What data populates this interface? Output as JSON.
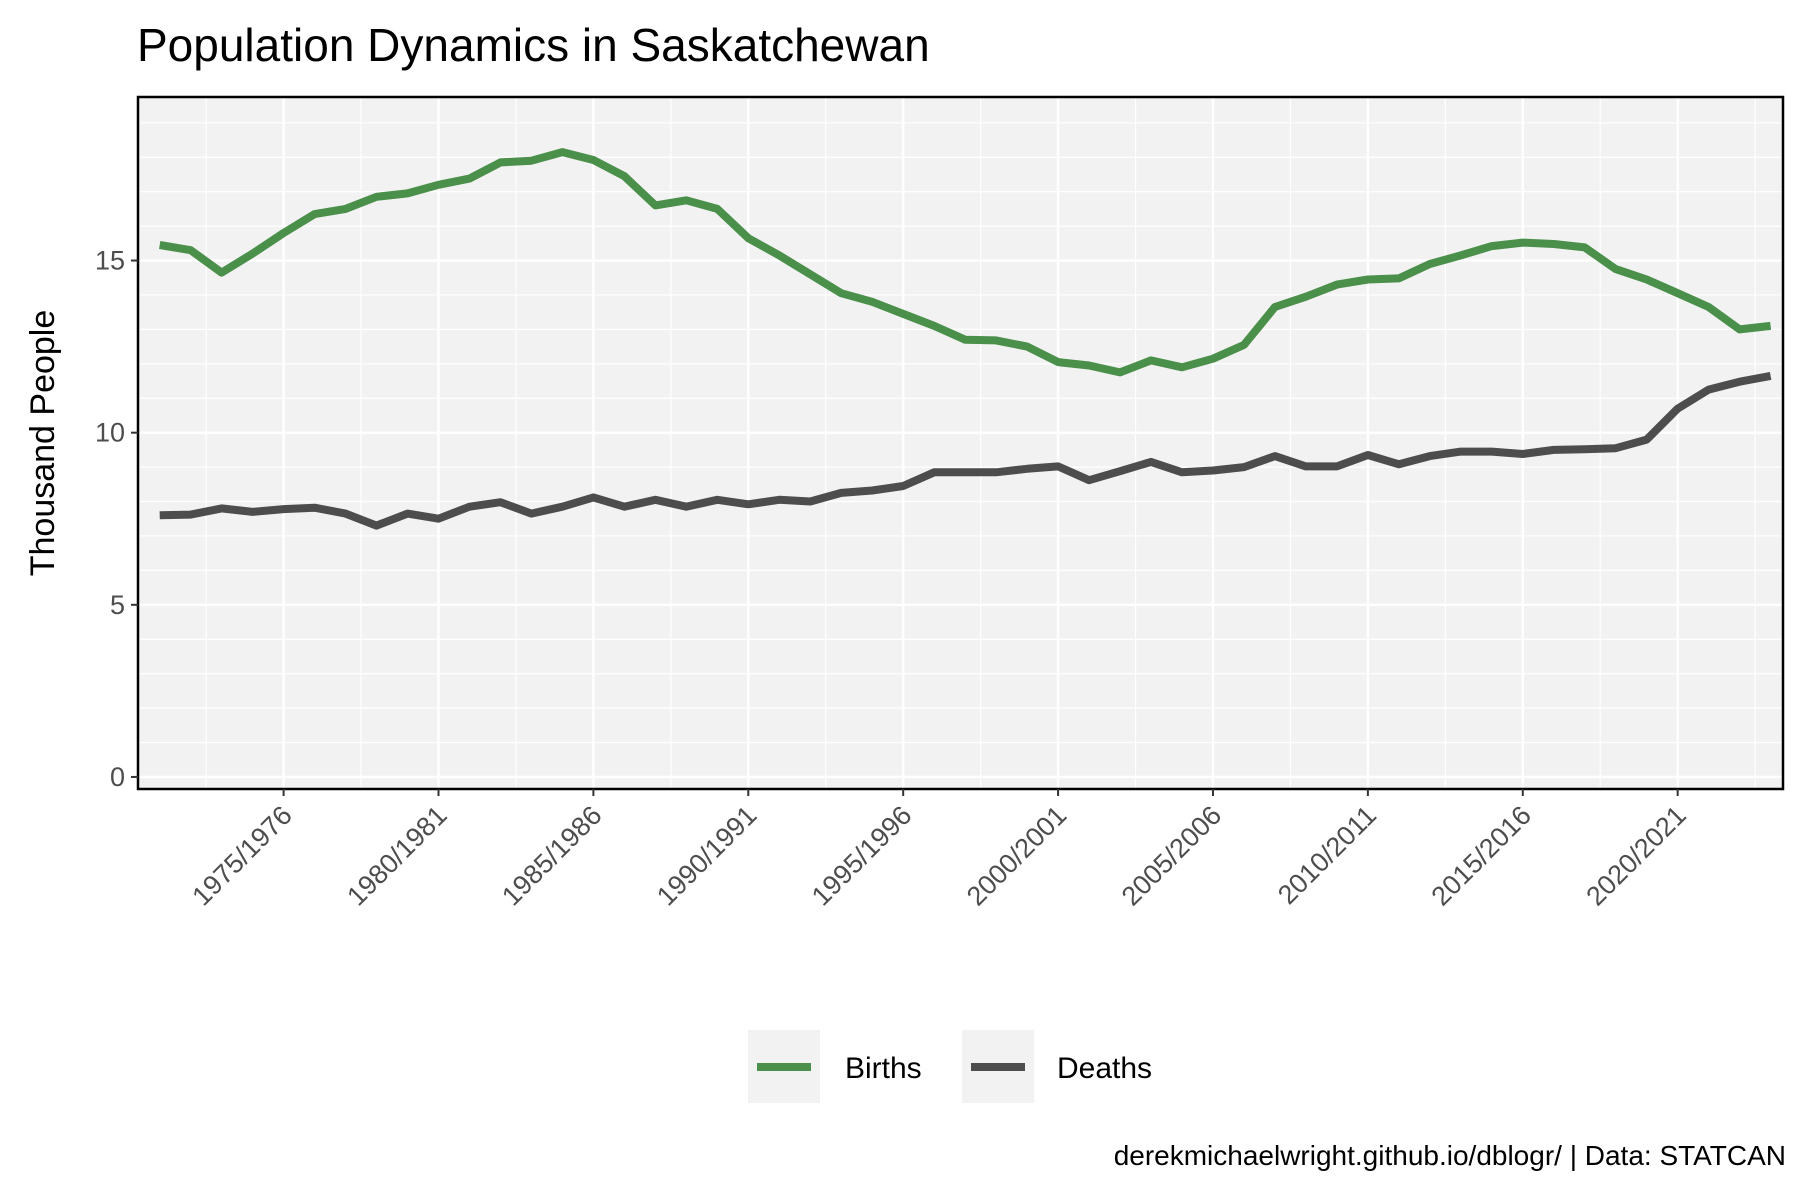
{
  "chart_data": {
    "type": "line",
    "title": "Population Dynamics in Saskatchewan",
    "caption": "derekmichaelwright.github.io/dblogr/ | Data: STATCAN",
    "xlabel": "",
    "ylabel": "Thousand People",
    "x_start": "1971/1972",
    "x_end": "2023/2024",
    "x_ticks": [
      "1975/1976",
      "1980/1981",
      "1985/1986",
      "1990/1991",
      "1995/1996",
      "2000/2001",
      "2005/2006",
      "2010/2011",
      "2015/2016",
      "2020/2021"
    ],
    "y_ticks": [
      0,
      5,
      10,
      15
    ],
    "ylim": [
      0,
      19.5
    ],
    "grid": true,
    "legend_position": "bottom",
    "series": [
      {
        "name": "Births",
        "color": "#4a8f4a",
        "values": [
          15.45,
          15.3,
          14.65,
          15.2,
          15.8,
          16.35,
          16.5,
          16.85,
          16.95,
          17.2,
          17.38,
          17.85,
          17.9,
          18.15,
          17.92,
          17.45,
          16.6,
          16.75,
          16.5,
          15.65,
          15.15,
          14.6,
          14.05,
          13.8,
          13.45,
          13.1,
          12.7,
          12.68,
          12.5,
          12.05,
          11.95,
          11.75,
          12.1,
          11.9,
          12.15,
          12.55,
          13.65,
          13.95,
          14.3,
          14.45,
          14.48,
          14.9,
          15.15,
          15.42,
          15.52,
          15.48,
          15.38,
          14.75,
          14.45,
          14.05,
          13.65,
          13.0,
          13.1
        ]
      },
      {
        "name": "Deaths",
        "color": "#4d4d4d",
        "values": [
          7.6,
          7.62,
          7.8,
          7.7,
          7.78,
          7.82,
          7.65,
          7.3,
          7.65,
          7.5,
          7.85,
          7.98,
          7.65,
          7.85,
          8.12,
          7.85,
          8.05,
          7.85,
          8.05,
          7.92,
          8.05,
          8.0,
          8.25,
          8.32,
          8.45,
          8.85,
          8.85,
          8.85,
          8.95,
          9.02,
          8.62,
          8.88,
          9.15,
          8.85,
          8.9,
          9.0,
          9.32,
          9.02,
          9.02,
          9.35,
          9.08,
          9.32,
          9.45,
          9.45,
          9.38,
          9.5,
          9.52,
          9.55,
          9.8,
          10.7,
          11.25,
          11.48,
          11.65
        ]
      }
    ]
  }
}
